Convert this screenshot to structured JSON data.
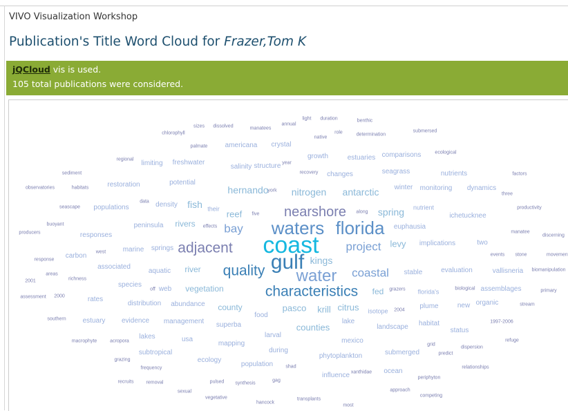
{
  "site": {
    "title": "VIVO Visualization Workshop"
  },
  "page": {
    "title_prefix": "Publication's Title Word Cloud for ",
    "person_name": "Frazer,Tom K"
  },
  "banner": {
    "link_text": "jQCloud",
    "line1_rest": " vis is used.",
    "line2": "105 total publications were considered."
  },
  "colors": {
    "banner_bg": "#8aab35",
    "title_color": "#1d4f6e",
    "cloud_colors": [
      "#16b8e0",
      "#3a7fb5",
      "#5b8fc7",
      "#7aa0d4",
      "#8ab8d8",
      "#9ab0dd",
      "#7b7fb0"
    ]
  },
  "word_cloud": {
    "words": [
      {
        "text": "coast",
        "size": 34,
        "level": 0
      },
      {
        "text": "gulf",
        "size": 30,
        "level": 1
      },
      {
        "text": "waters",
        "size": 26,
        "level": 2
      },
      {
        "text": "florida",
        "size": 26,
        "level": 2
      },
      {
        "text": "water",
        "size": 24,
        "level": 3
      },
      {
        "text": "quality",
        "size": 21,
        "level": 1
      },
      {
        "text": "characteristics",
        "size": 21,
        "level": 1
      },
      {
        "text": "adjacent",
        "size": 21,
        "level": 6
      },
      {
        "text": "nearshore",
        "size": 20,
        "level": 6
      },
      {
        "text": "project",
        "size": 17,
        "level": 3
      },
      {
        "text": "coastal",
        "size": 17,
        "level": 3
      },
      {
        "text": "bay",
        "size": 17,
        "level": 3
      },
      {
        "text": "kings",
        "size": 14,
        "level": 4
      },
      {
        "text": "hernando",
        "size": 14,
        "level": 4
      },
      {
        "text": "nitrogen",
        "size": 14,
        "level": 4
      },
      {
        "text": "antarctic",
        "size": 14,
        "level": 4
      },
      {
        "text": "spring",
        "size": 14,
        "level": 4
      },
      {
        "text": "fish",
        "size": 14,
        "level": 4
      },
      {
        "text": "reef",
        "size": 13,
        "level": 4
      },
      {
        "text": "levy",
        "size": 13,
        "level": 4
      },
      {
        "text": "pasco",
        "size": 13,
        "level": 4
      },
      {
        "text": "krill",
        "size": 13,
        "level": 4
      },
      {
        "text": "citrus",
        "size": 13,
        "level": 4
      },
      {
        "text": "counties",
        "size": 13,
        "level": 4
      },
      {
        "text": "vegetation",
        "size": 12,
        "level": 4
      },
      {
        "text": "county",
        "size": 12,
        "level": 4
      },
      {
        "text": "fed",
        "size": 12,
        "level": 4
      },
      {
        "text": "river",
        "size": 12,
        "level": 4
      },
      {
        "text": "rivers",
        "size": 12,
        "level": 4
      },
      {
        "text": "springs",
        "size": 10,
        "level": 5
      },
      {
        "text": "euphausia",
        "size": 10,
        "level": 5
      },
      {
        "text": "seagrass",
        "size": 10,
        "level": 5
      },
      {
        "text": "comparisons",
        "size": 10,
        "level": 5
      },
      {
        "text": "estuaries",
        "size": 10,
        "level": 5
      },
      {
        "text": "growth",
        "size": 10,
        "level": 5
      },
      {
        "text": "crystal",
        "size": 10,
        "level": 5
      },
      {
        "text": "americana",
        "size": 10,
        "level": 5
      },
      {
        "text": "freshwater",
        "size": 10,
        "level": 5
      },
      {
        "text": "limiting",
        "size": 10,
        "level": 5
      },
      {
        "text": "salinity",
        "size": 10,
        "level": 5
      },
      {
        "text": "structure",
        "size": 10,
        "level": 5
      },
      {
        "text": "changes",
        "size": 10,
        "level": 5
      },
      {
        "text": "nutrients",
        "size": 10,
        "level": 5
      },
      {
        "text": "restoration",
        "size": 10,
        "level": 5
      },
      {
        "text": "potential",
        "size": 10,
        "level": 5
      },
      {
        "text": "winter",
        "size": 10,
        "level": 5
      },
      {
        "text": "monitoring",
        "size": 10,
        "level": 5
      },
      {
        "text": "dynamics",
        "size": 10,
        "level": 5
      },
      {
        "text": "populations",
        "size": 10,
        "level": 5
      },
      {
        "text": "density",
        "size": 10,
        "level": 5
      },
      {
        "text": "their",
        "size": 9,
        "level": 5
      },
      {
        "text": "nutrient",
        "size": 9,
        "level": 5
      },
      {
        "text": "ichetucknee",
        "size": 10,
        "level": 5
      },
      {
        "text": "peninsula",
        "size": 10,
        "level": 5
      },
      {
        "text": "responses",
        "size": 10,
        "level": 5
      },
      {
        "text": "implications",
        "size": 10,
        "level": 5
      },
      {
        "text": "two",
        "size": 10,
        "level": 5
      },
      {
        "text": "marine",
        "size": 10,
        "level": 5
      },
      {
        "text": "carbon",
        "size": 10,
        "level": 5
      },
      {
        "text": "associated",
        "size": 10,
        "level": 5
      },
      {
        "text": "aquatic",
        "size": 10,
        "level": 5
      },
      {
        "text": "stable",
        "size": 10,
        "level": 5
      },
      {
        "text": "evaluation",
        "size": 10,
        "level": 5
      },
      {
        "text": "vallisneria",
        "size": 10,
        "level": 5
      },
      {
        "text": "species",
        "size": 10,
        "level": 5
      },
      {
        "text": "web",
        "size": 10,
        "level": 5
      },
      {
        "text": "florida's",
        "size": 9,
        "level": 5
      },
      {
        "text": "assemblages",
        "size": 10,
        "level": 5
      },
      {
        "text": "rates",
        "size": 10,
        "level": 5
      },
      {
        "text": "distribution",
        "size": 10,
        "level": 5
      },
      {
        "text": "abundance",
        "size": 10,
        "level": 5
      },
      {
        "text": "plume",
        "size": 10,
        "level": 5
      },
      {
        "text": "new",
        "size": 10,
        "level": 5
      },
      {
        "text": "organic",
        "size": 10,
        "level": 5
      },
      {
        "text": "estuary",
        "size": 10,
        "level": 5
      },
      {
        "text": "evidence",
        "size": 10,
        "level": 5
      },
      {
        "text": "management",
        "size": 10,
        "level": 5
      },
      {
        "text": "superba",
        "size": 10,
        "level": 5
      },
      {
        "text": "food",
        "size": 10,
        "level": 5
      },
      {
        "text": "lake",
        "size": 10,
        "level": 5
      },
      {
        "text": "landscape",
        "size": 10,
        "level": 5
      },
      {
        "text": "habitat",
        "size": 10,
        "level": 5
      },
      {
        "text": "status",
        "size": 10,
        "level": 5
      },
      {
        "text": "lakes",
        "size": 10,
        "level": 5
      },
      {
        "text": "usa",
        "size": 10,
        "level": 5
      },
      {
        "text": "mapping",
        "size": 10,
        "level": 5
      },
      {
        "text": "larval",
        "size": 10,
        "level": 5
      },
      {
        "text": "mexico",
        "size": 10,
        "level": 5
      },
      {
        "text": "subtropical",
        "size": 10,
        "level": 5
      },
      {
        "text": "during",
        "size": 10,
        "level": 5
      },
      {
        "text": "submerged",
        "size": 10,
        "level": 5
      },
      {
        "text": "ecology",
        "size": 10,
        "level": 5
      },
      {
        "text": "population",
        "size": 10,
        "level": 5
      },
      {
        "text": "phytoplankton",
        "size": 10,
        "level": 5
      },
      {
        "text": "influence",
        "size": 10,
        "level": 5
      },
      {
        "text": "ocean",
        "size": 10,
        "level": 5
      },
      {
        "text": "isotope",
        "size": 9,
        "level": 5
      },
      {
        "text": "chlorophyll",
        "size": 7,
        "level": 6
      },
      {
        "text": "sizes",
        "size": 7,
        "level": 6
      },
      {
        "text": "dissolved",
        "size": 7,
        "level": 6
      },
      {
        "text": "manatees",
        "size": 7,
        "level": 6
      },
      {
        "text": "annual",
        "size": 7,
        "level": 6
      },
      {
        "text": "light",
        "size": 7,
        "level": 6
      },
      {
        "text": "duration",
        "size": 7,
        "level": 6
      },
      {
        "text": "benthic",
        "size": 7,
        "level": 6
      },
      {
        "text": "native",
        "size": 7,
        "level": 6
      },
      {
        "text": "role",
        "size": 7,
        "level": 6
      },
      {
        "text": "determination",
        "size": 7,
        "level": 6
      },
      {
        "text": "submersed",
        "size": 7,
        "level": 6
      },
      {
        "text": "palmate",
        "size": 7,
        "level": 6
      },
      {
        "text": "ecological",
        "size": 7,
        "level": 6
      },
      {
        "text": "regional",
        "size": 7,
        "level": 6
      },
      {
        "text": "year",
        "size": 7,
        "level": 6
      },
      {
        "text": "sediment",
        "size": 7,
        "level": 6
      },
      {
        "text": "recovery",
        "size": 7,
        "level": 6
      },
      {
        "text": "factors",
        "size": 7,
        "level": 6
      },
      {
        "text": "observatories",
        "size": 7,
        "level": 6
      },
      {
        "text": "habitats",
        "size": 7,
        "level": 6
      },
      {
        "text": "york",
        "size": 7,
        "level": 6
      },
      {
        "text": "three",
        "size": 7,
        "level": 6
      },
      {
        "text": "seascape",
        "size": 7,
        "level": 6
      },
      {
        "text": "data",
        "size": 7,
        "level": 6
      },
      {
        "text": "five",
        "size": 7,
        "level": 6
      },
      {
        "text": "along",
        "size": 7,
        "level": 6
      },
      {
        "text": "productivity",
        "size": 7,
        "level": 6
      },
      {
        "text": "buoyant",
        "size": 7,
        "level": 6
      },
      {
        "text": "producers",
        "size": 7,
        "level": 6
      },
      {
        "text": "effects",
        "size": 7,
        "level": 6
      },
      {
        "text": "manatee",
        "size": 7,
        "level": 6
      },
      {
        "text": "discerning",
        "size": 7,
        "level": 6
      },
      {
        "text": "west",
        "size": 7,
        "level": 6
      },
      {
        "text": "response",
        "size": 7,
        "level": 6
      },
      {
        "text": "events",
        "size": 7,
        "level": 6
      },
      {
        "text": "stone",
        "size": 7,
        "level": 6
      },
      {
        "text": "movements",
        "size": 7,
        "level": 6
      },
      {
        "text": "areas",
        "size": 7,
        "level": 6
      },
      {
        "text": "richness",
        "size": 7,
        "level": 6
      },
      {
        "text": "2001",
        "size": 7,
        "level": 6
      },
      {
        "text": "biomanipulation",
        "size": 7,
        "level": 6
      },
      {
        "text": "off",
        "size": 7,
        "level": 6
      },
      {
        "text": "grazers",
        "size": 7,
        "level": 6
      },
      {
        "text": "biological",
        "size": 7,
        "level": 6
      },
      {
        "text": "primary",
        "size": 7,
        "level": 6
      },
      {
        "text": "assessment",
        "size": 7,
        "level": 6
      },
      {
        "text": "2000",
        "size": 7,
        "level": 6
      },
      {
        "text": "2004",
        "size": 7,
        "level": 6
      },
      {
        "text": "stream",
        "size": 7,
        "level": 6
      },
      {
        "text": "southern",
        "size": 7,
        "level": 6
      },
      {
        "text": "1997-2006",
        "size": 7,
        "level": 6
      },
      {
        "text": "macrophyte",
        "size": 7,
        "level": 6
      },
      {
        "text": "acropora",
        "size": 7,
        "level": 6
      },
      {
        "text": "grid",
        "size": 7,
        "level": 6
      },
      {
        "text": "refuge",
        "size": 7,
        "level": 6
      },
      {
        "text": "dispersion",
        "size": 7,
        "level": 6
      },
      {
        "text": "predict",
        "size": 7,
        "level": 6
      },
      {
        "text": "grazing",
        "size": 7,
        "level": 6
      },
      {
        "text": "frequency",
        "size": 7,
        "level": 6
      },
      {
        "text": "relationships",
        "size": 7,
        "level": 6
      },
      {
        "text": "shad",
        "size": 7,
        "level": 6
      },
      {
        "text": "xanthidae",
        "size": 7,
        "level": 6
      },
      {
        "text": "periphyton",
        "size": 7,
        "level": 6
      },
      {
        "text": "pulsed",
        "size": 7,
        "level": 6
      },
      {
        "text": "synthesis",
        "size": 7,
        "level": 6
      },
      {
        "text": "gag",
        "size": 7,
        "level": 6
      },
      {
        "text": "recruits",
        "size": 7,
        "level": 6
      },
      {
        "text": "removal",
        "size": 7,
        "level": 6
      },
      {
        "text": "approach",
        "size": 7,
        "level": 6
      },
      {
        "text": "competing",
        "size": 7,
        "level": 6
      },
      {
        "text": "sexual",
        "size": 7,
        "level": 6
      },
      {
        "text": "vegetative",
        "size": 7,
        "level": 6
      },
      {
        "text": "hancock",
        "size": 7,
        "level": 6
      },
      {
        "text": "transplants",
        "size": 7,
        "level": 6
      },
      {
        "text": "most",
        "size": 7,
        "level": 6
      }
    ]
  }
}
